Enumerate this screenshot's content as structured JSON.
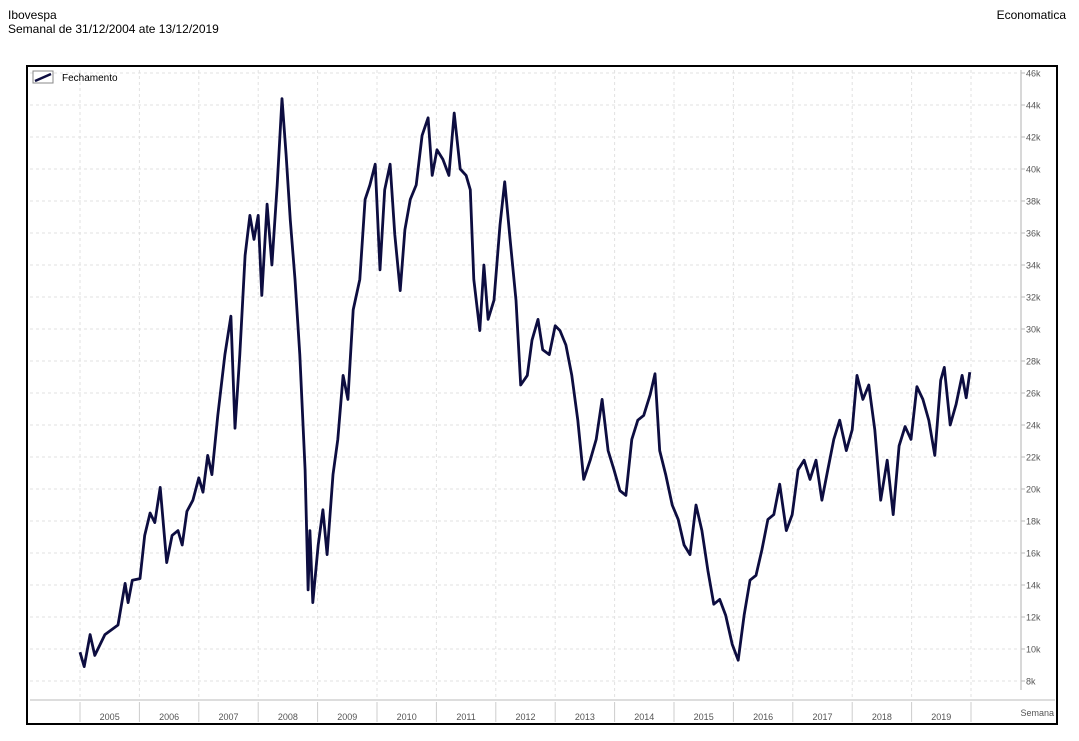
{
  "header": {
    "title": "Ibovespa",
    "subtitle": "Semanal de 31/12/2004 ate 13/12/2019",
    "brand": "Economatica"
  },
  "chart_data": {
    "type": "line",
    "title": "Ibovespa",
    "subtitle": "Semanal de 31/12/2004 ate 13/12/2019",
    "xlabel": "Semana",
    "ylabel": "",
    "xlim": [
      2005.0,
      2020.0
    ],
    "ylim": [
      7,
      46
    ],
    "grid": true,
    "legend_position": "top-left",
    "y_ticks": [
      8,
      10,
      12,
      14,
      16,
      18,
      20,
      22,
      24,
      26,
      28,
      30,
      32,
      34,
      36,
      38,
      40,
      42,
      44,
      46
    ],
    "y_tick_labels": [
      "8k",
      "10k",
      "12k",
      "14k",
      "16k",
      "18k",
      "20k",
      "22k",
      "24k",
      "26k",
      "28k",
      "30k",
      "32k",
      "34k",
      "36k",
      "38k",
      "40k",
      "42k",
      "44k",
      "46k"
    ],
    "x_tick_labels": [
      "2005",
      "2006",
      "2007",
      "2008",
      "2009",
      "2010",
      "2011",
      "2012",
      "2013",
      "2014",
      "2015",
      "2016",
      "2017",
      "2018",
      "2019"
    ],
    "series": [
      {
        "name": "Fechamento",
        "color": "#0d0d40",
        "unit": "thousand points",
        "x": [
          2005.0,
          2005.07,
          2005.17,
          2005.25,
          2005.42,
          2005.64,
          2005.76,
          2005.81,
          2005.88,
          2006.01,
          2006.09,
          2006.18,
          2006.26,
          2006.35,
          2006.46,
          2006.55,
          2006.65,
          2006.72,
          2006.8,
          2006.9,
          2007.0,
          2007.07,
          2007.15,
          2007.22,
          2007.32,
          2007.44,
          2007.54,
          2007.61,
          2007.69,
          2007.78,
          2007.86,
          2007.93,
          2008.0,
          2008.06,
          2008.15,
          2008.23,
          2008.32,
          2008.4,
          2008.47,
          2008.54,
          2008.62,
          2008.7,
          2008.79,
          2008.84,
          2008.87,
          2008.92,
          2009.01,
          2009.09,
          2009.16,
          2009.26,
          2009.34,
          2009.43,
          2009.51,
          2009.6,
          2009.71,
          2009.8,
          2009.88,
          2009.97,
          2010.05,
          2010.13,
          2010.22,
          2010.3,
          2010.39,
          2010.47,
          2010.56,
          2010.66,
          2010.76,
          2010.86,
          2010.93,
          2011.01,
          2011.11,
          2011.21,
          2011.3,
          2011.4,
          2011.5,
          2011.57,
          2011.63,
          2011.73,
          2011.8,
          2011.87,
          2011.97,
          2012.07,
          2012.15,
          2012.24,
          2012.34,
          2012.42,
          2012.53,
          2012.61,
          2012.71,
          2012.79,
          2012.9,
          2013.0,
          2013.08,
          2013.18,
          2013.28,
          2013.38,
          2013.48,
          2013.59,
          2013.69,
          2013.79,
          2013.89,
          2013.99,
          2014.09,
          2014.19,
          2014.29,
          2014.39,
          2014.49,
          2014.6,
          2014.68,
          2014.76,
          2014.86,
          2014.97,
          2015.07,
          2015.17,
          2015.27,
          2015.37,
          2015.47,
          2015.57,
          2015.67,
          2015.77,
          2015.87,
          2015.98,
          2016.08,
          2016.18,
          2016.28,
          2016.38,
          2016.48,
          2016.58,
          2016.68,
          2016.78,
          2016.89,
          2016.99,
          2017.09,
          2017.19,
          2017.29,
          2017.39,
          2017.49,
          2017.59,
          2017.69,
          2017.79,
          2017.9,
          2018.0,
          2018.08,
          2018.18,
          2018.28,
          2018.38,
          2018.48,
          2018.59,
          2018.69,
          2018.79,
          2018.89,
          2018.99,
          2019.09,
          2019.19,
          2019.29,
          2019.39,
          2019.49,
          2019.55,
          2019.65,
          2019.75,
          2019.85,
          2019.92,
          2019.98
        ],
        "values": [
          9.8,
          8.9,
          10.9,
          9.6,
          10.9,
          11.5,
          14.1,
          12.9,
          14.3,
          14.4,
          17.1,
          18.5,
          17.9,
          20.1,
          15.4,
          17.1,
          17.4,
          16.5,
          18.6,
          19.3,
          20.7,
          19.8,
          22.1,
          20.9,
          24.6,
          28.4,
          30.8,
          23.8,
          28.4,
          34.6,
          37.1,
          35.6,
          37.1,
          32.1,
          37.8,
          34.0,
          39.0,
          44.4,
          40.9,
          36.8,
          33.1,
          28.4,
          21.2,
          13.7,
          17.4,
          12.9,
          16.5,
          18.7,
          15.9,
          20.9,
          23.1,
          27.1,
          25.6,
          31.2,
          33.1,
          38.1,
          39.0,
          40.3,
          33.7,
          38.7,
          40.3,
          35.9,
          32.4,
          36.2,
          38.1,
          39.0,
          42.1,
          43.2,
          39.6,
          41.2,
          40.6,
          39.6,
          43.5,
          40.0,
          39.6,
          38.7,
          33.1,
          29.9,
          34.0,
          30.6,
          31.8,
          36.5,
          39.2,
          35.6,
          31.8,
          26.5,
          27.1,
          29.3,
          30.6,
          28.7,
          28.4,
          30.2,
          29.9,
          29.0,
          27.1,
          24.3,
          20.6,
          21.8,
          23.1,
          25.6,
          22.4,
          21.2,
          19.9,
          19.6,
          23.1,
          24.3,
          24.6,
          25.9,
          27.2,
          22.4,
          20.9,
          19.0,
          18.1,
          16.5,
          15.9,
          19.0,
          17.4,
          14.9,
          12.8,
          13.1,
          12.1,
          10.3,
          9.3,
          12.1,
          14.3,
          14.6,
          16.2,
          18.1,
          18.4,
          20.3,
          17.4,
          18.4,
          21.2,
          21.8,
          20.6,
          21.8,
          19.3,
          21.2,
          23.1,
          24.3,
          22.4,
          23.7,
          27.1,
          25.6,
          26.5,
          23.7,
          19.3,
          21.8,
          18.4,
          22.7,
          23.9,
          23.1,
          26.4,
          25.6,
          24.3,
          22.1,
          26.8,
          27.6,
          24.0,
          25.3,
          27.1,
          25.7,
          27.3
        ]
      }
    ]
  }
}
